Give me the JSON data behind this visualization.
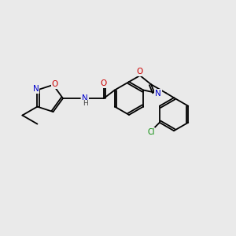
{
  "background_color": "#eaeaea",
  "atom_colors": {
    "C": "#000000",
    "N": "#0000cc",
    "O": "#cc0000",
    "Cl": "#008800",
    "H": "#444444"
  },
  "bond_color": "#000000",
  "bond_lw": 1.3,
  "figsize": [
    3.0,
    3.0
  ],
  "dpi": 100,
  "fontsize": 7.5
}
